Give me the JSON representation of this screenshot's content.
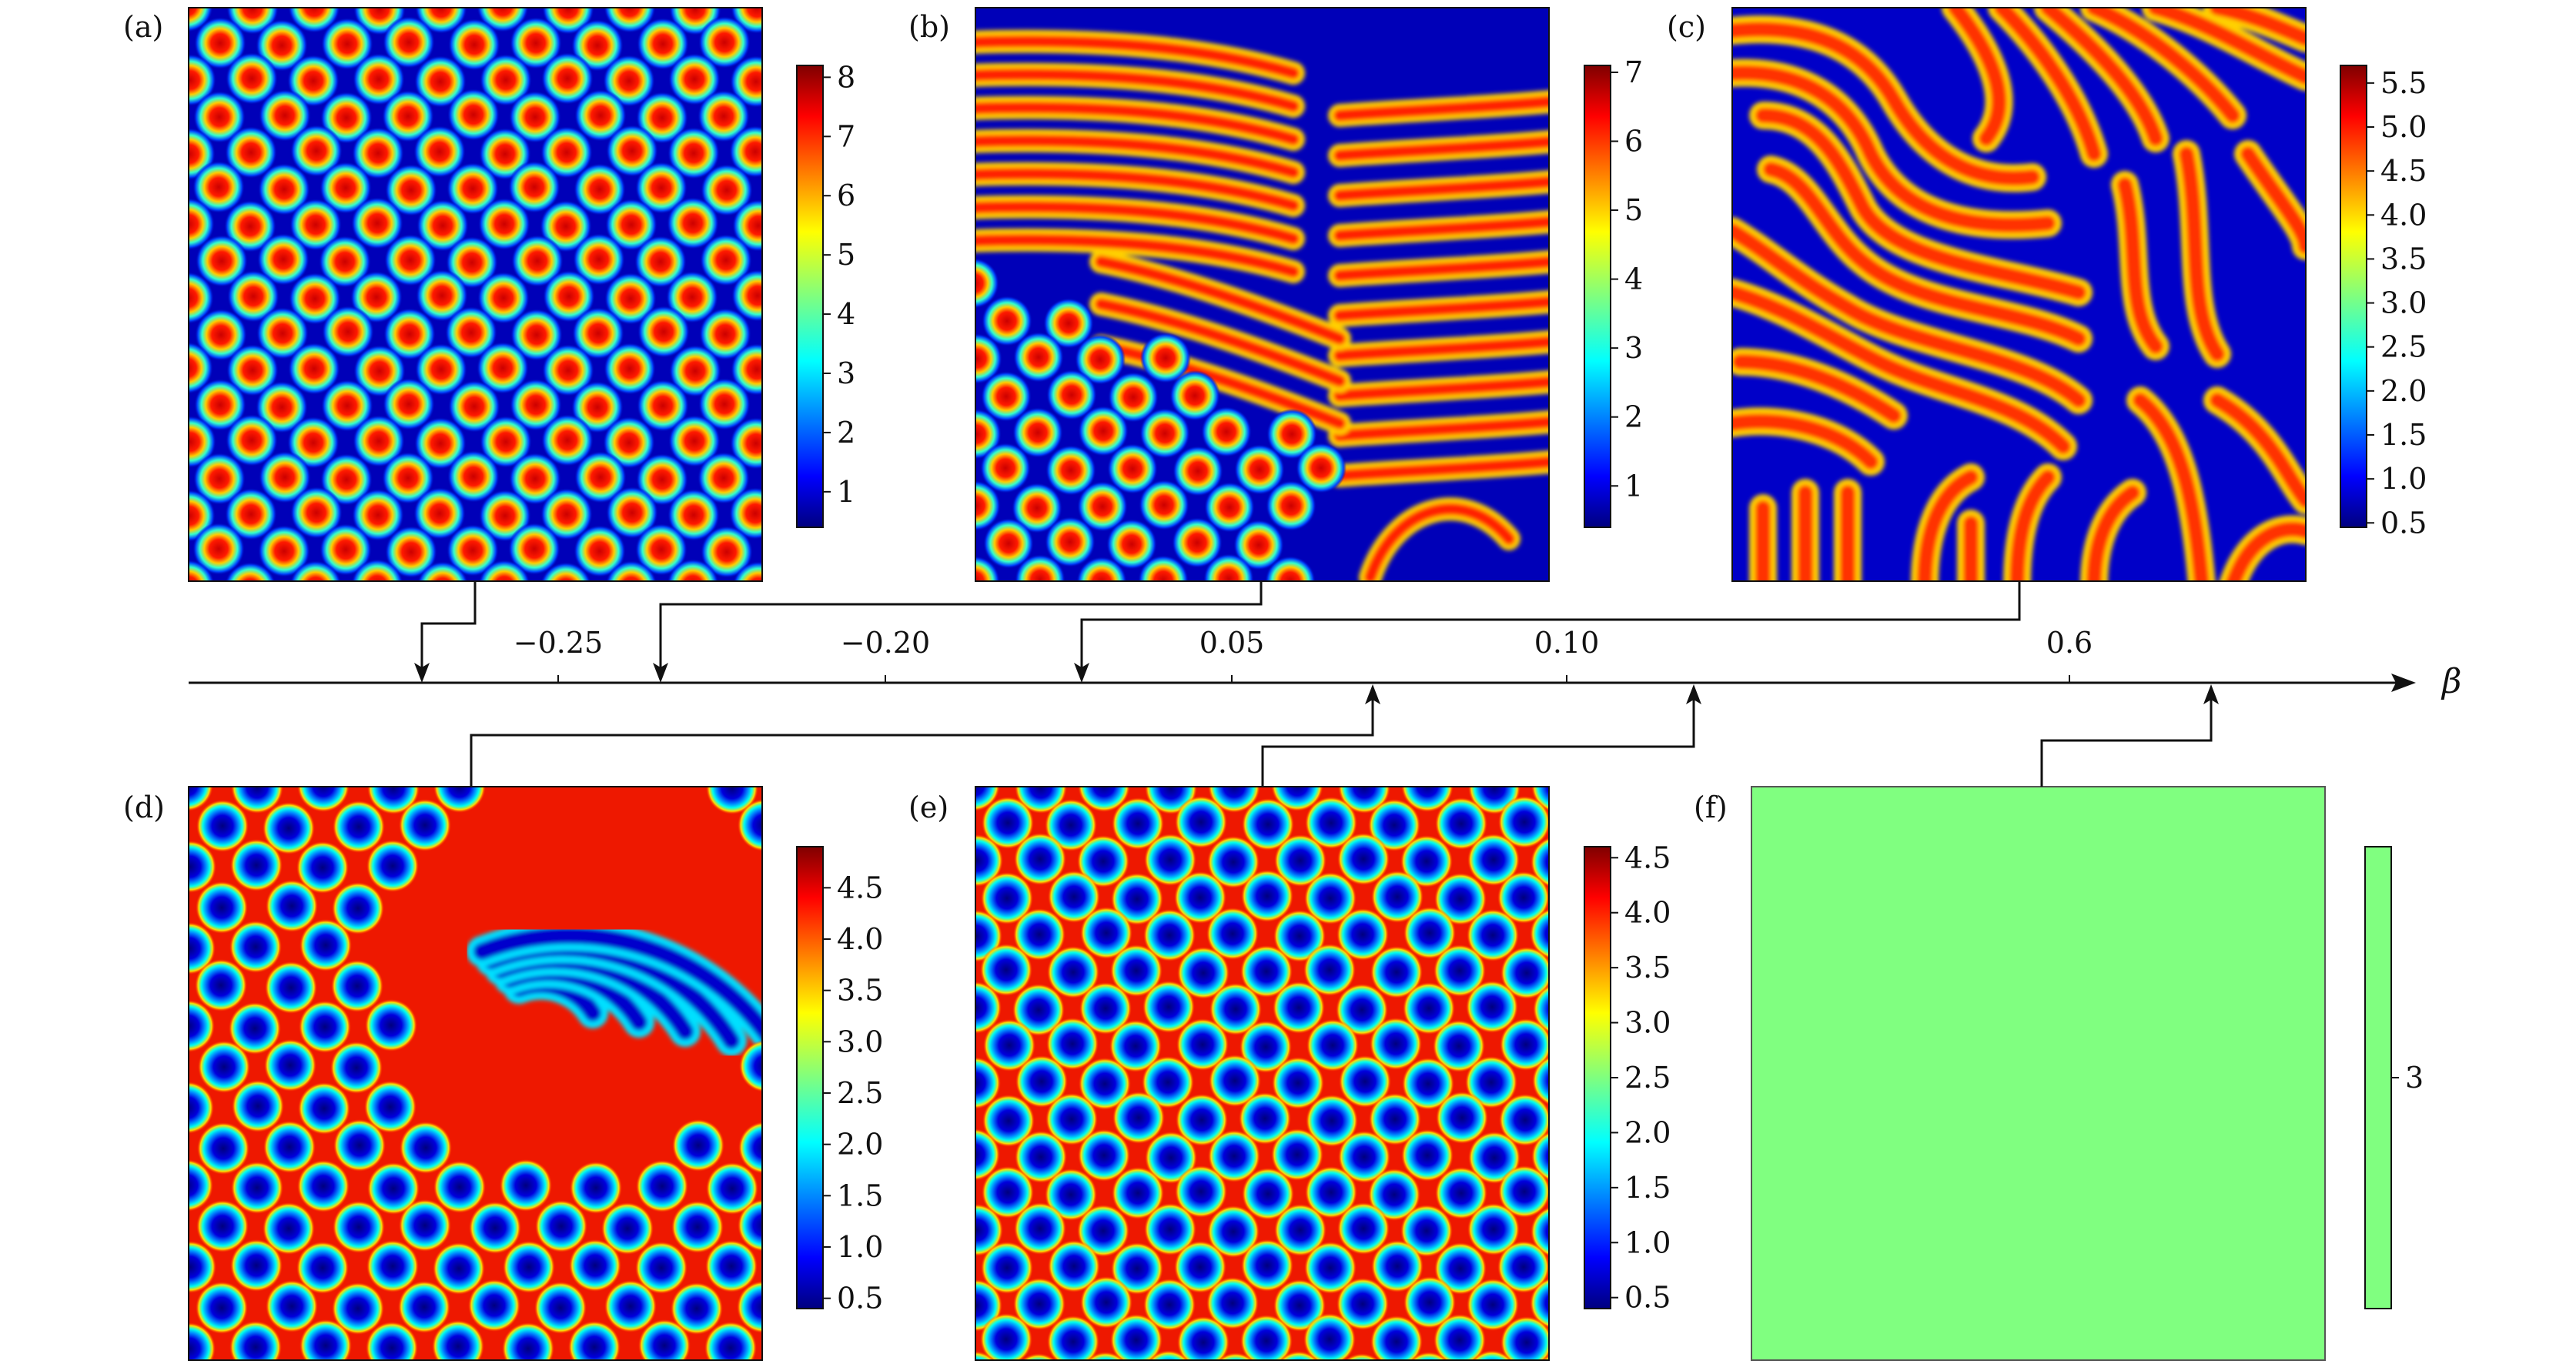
{
  "axis": {
    "symbol": "β",
    "ticks": [
      "−0.25",
      "−0.20",
      "0.05",
      "0.10",
      "0.6"
    ]
  },
  "panels": [
    {
      "label": "(a)",
      "pattern": "spots",
      "colorbar": {
        "ticks": [
          "8",
          "7",
          "6",
          "5",
          "4",
          "3",
          "2",
          "1"
        ],
        "range": [
          0.4,
          8.2
        ]
      }
    },
    {
      "label": "(b)",
      "pattern": "mixed spots and stripes",
      "colorbar": {
        "ticks": [
          "7",
          "6",
          "5",
          "4",
          "3",
          "2",
          "1"
        ],
        "range": [
          0.4,
          7.1
        ]
      }
    },
    {
      "label": "(c)",
      "pattern": "labyrinth stripes",
      "colorbar": {
        "ticks": [
          "5.5",
          "5.0",
          "4.5",
          "4.0",
          "3.5",
          "3.0",
          "2.5",
          "2.0",
          "1.5",
          "1.0",
          "0.5"
        ],
        "range": [
          0.45,
          5.7
        ]
      }
    },
    {
      "label": "(d)",
      "pattern": "holes and stripes",
      "colorbar": {
        "ticks": [
          "4.5",
          "4.0",
          "3.5",
          "3.0",
          "2.5",
          "2.0",
          "1.5",
          "1.0",
          "0.5"
        ],
        "range": [
          0.4,
          4.9
        ]
      }
    },
    {
      "label": "(e)",
      "pattern": "holes",
      "colorbar": {
        "ticks": [
          "4.5",
          "4.0",
          "3.5",
          "3.0",
          "2.5",
          "2.0",
          "1.5",
          "1.0",
          "0.5"
        ],
        "range": [
          0.4,
          4.6
        ]
      }
    },
    {
      "label": "(f)",
      "pattern": "uniform",
      "colorbar": {
        "ticks": [
          "3"
        ],
        "range": [
          2.5,
          3.5
        ]
      }
    }
  ],
  "colors": {
    "jet_low": "#00007f",
    "jet_high": "#7f0000",
    "uniform": "#80ff80",
    "line": "#111111"
  }
}
